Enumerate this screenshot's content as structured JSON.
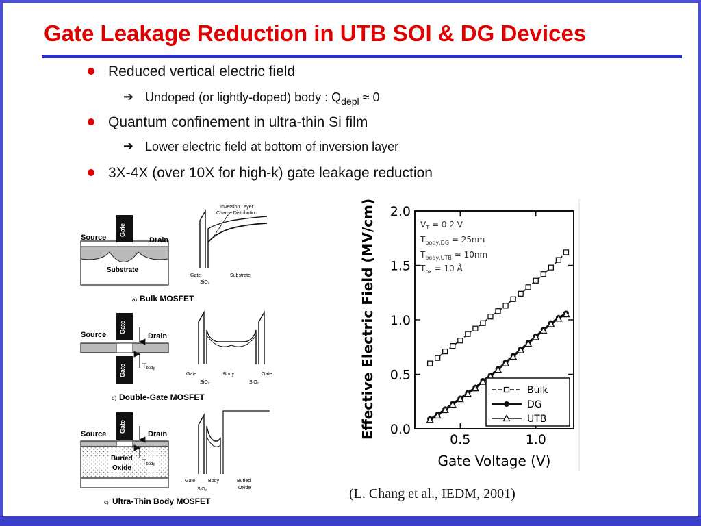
{
  "slide": {
    "title": "Gate Leakage Reduction in UTB SOI & DG  Devices",
    "bullets": [
      {
        "text": "Reduced vertical electric field"
      },
      {
        "prefix": "Undoped (or lightly-doped) body : Q",
        "subscript": "depl",
        "suffix": " ≈ 0"
      },
      {
        "text": "Quantum confinement in ultra-thin Si film"
      },
      {
        "text": "Lower electric field at bottom of inversion layer"
      },
      {
        "text": "3X-4X (over 10X for high-k) gate leakage reduction"
      }
    ],
    "arrow_glyph": "➔",
    "accent_color": "#e00000",
    "frame_color": "#4b4fd6",
    "citation": "(L. Chang et al., IEDM, 2001)"
  },
  "device_figure": {
    "panels": [
      {
        "caption_prefix": "a)",
        "caption": "Bulk MOSFET",
        "labels": {
          "source": "Source",
          "drain": "Drain",
          "gate": "Gate",
          "substrate": "Substrate"
        },
        "band_title_1": "Inversion Layer",
        "band_title_2": "Charge Distribution",
        "band_labels": [
          "Gate",
          "SiO₂",
          "Substrate"
        ]
      },
      {
        "caption_prefix": "b)",
        "caption": "Double-Gate MOSFET",
        "labels": {
          "source": "Source",
          "drain": "Drain",
          "gate_top": "Gate",
          "gate_bottom": "Gate",
          "tbody": "T",
          "tbody_sub": "body"
        },
        "band_labels": [
          "Gate",
          "SiO₂",
          "Body",
          "SiO₂",
          "Gate"
        ]
      },
      {
        "caption_prefix": "c)",
        "caption": "Ultra-Thin Body MOSFET",
        "labels": {
          "source": "Source",
          "drain": "Drain",
          "gate": "Gate",
          "oxide_1": "Buried",
          "oxide_2": "Oxide",
          "tbody": "T",
          "tbody_sub": "body"
        },
        "band_labels": [
          "Gate",
          "Body",
          "Buried",
          "Oxide",
          "SiO₂"
        ]
      }
    ]
  },
  "chart_data": {
    "type": "line",
    "xlabel": "Gate Voltage (V)",
    "ylabel": "Effective Electric Field  (MV/cm)",
    "xlim": [
      0.2,
      1.25
    ],
    "ylim": [
      0.0,
      2.0
    ],
    "xticks": [
      0.5,
      1.0
    ],
    "xtick_labels": [
      "0.5",
      "1.0"
    ],
    "yticks": [
      0.0,
      0.5,
      1.0,
      1.5,
      2.0
    ],
    "ytick_labels": [
      "0.0",
      "0.5",
      "1.0",
      "1.5",
      "2.0"
    ],
    "grid": false,
    "legend_position": "bottom-right",
    "annotation_lines": [
      {
        "main": "V",
        "sub": "T",
        "rest": " = 0.2 V"
      },
      {
        "main": "T",
        "sub": "body,DG",
        "rest": " = 25nm"
      },
      {
        "main": "T",
        "sub": "body,UTB",
        "rest": " = 10nm"
      },
      {
        "main": "T",
        "sub": "ox",
        "rest": " = 10 Å"
      }
    ],
    "series": [
      {
        "name": "Bulk",
        "marker": "open-square",
        "x": [
          0.3,
          0.35,
          0.4,
          0.45,
          0.5,
          0.55,
          0.6,
          0.65,
          0.7,
          0.75,
          0.8,
          0.85,
          0.9,
          0.95,
          1.0,
          1.05,
          1.1,
          1.15,
          1.2
        ],
        "y": [
          0.6,
          0.65,
          0.71,
          0.76,
          0.81,
          0.87,
          0.92,
          0.97,
          1.03,
          1.08,
          1.13,
          1.19,
          1.24,
          1.3,
          1.36,
          1.42,
          1.48,
          1.55,
          1.62
        ]
      },
      {
        "name": "DG",
        "marker": "filled-circle",
        "x": [
          0.3,
          0.35,
          0.4,
          0.45,
          0.5,
          0.55,
          0.6,
          0.65,
          0.7,
          0.75,
          0.8,
          0.85,
          0.9,
          0.95,
          1.0,
          1.05,
          1.1,
          1.15,
          1.2
        ],
        "y": [
          0.09,
          0.13,
          0.18,
          0.23,
          0.28,
          0.33,
          0.38,
          0.44,
          0.49,
          0.55,
          0.61,
          0.67,
          0.73,
          0.79,
          0.85,
          0.91,
          0.97,
          1.02,
          1.06
        ]
      },
      {
        "name": "UTB",
        "marker": "open-triangle",
        "x": [
          0.3,
          0.35,
          0.4,
          0.45,
          0.5,
          0.55,
          0.6,
          0.65,
          0.7,
          0.75,
          0.8,
          0.85,
          0.9,
          0.95,
          1.0,
          1.05,
          1.1,
          1.15,
          1.2
        ],
        "y": [
          0.08,
          0.12,
          0.17,
          0.22,
          0.27,
          0.32,
          0.37,
          0.43,
          0.48,
          0.54,
          0.6,
          0.66,
          0.72,
          0.78,
          0.84,
          0.9,
          0.96,
          1.01,
          1.05
        ]
      }
    ]
  }
}
